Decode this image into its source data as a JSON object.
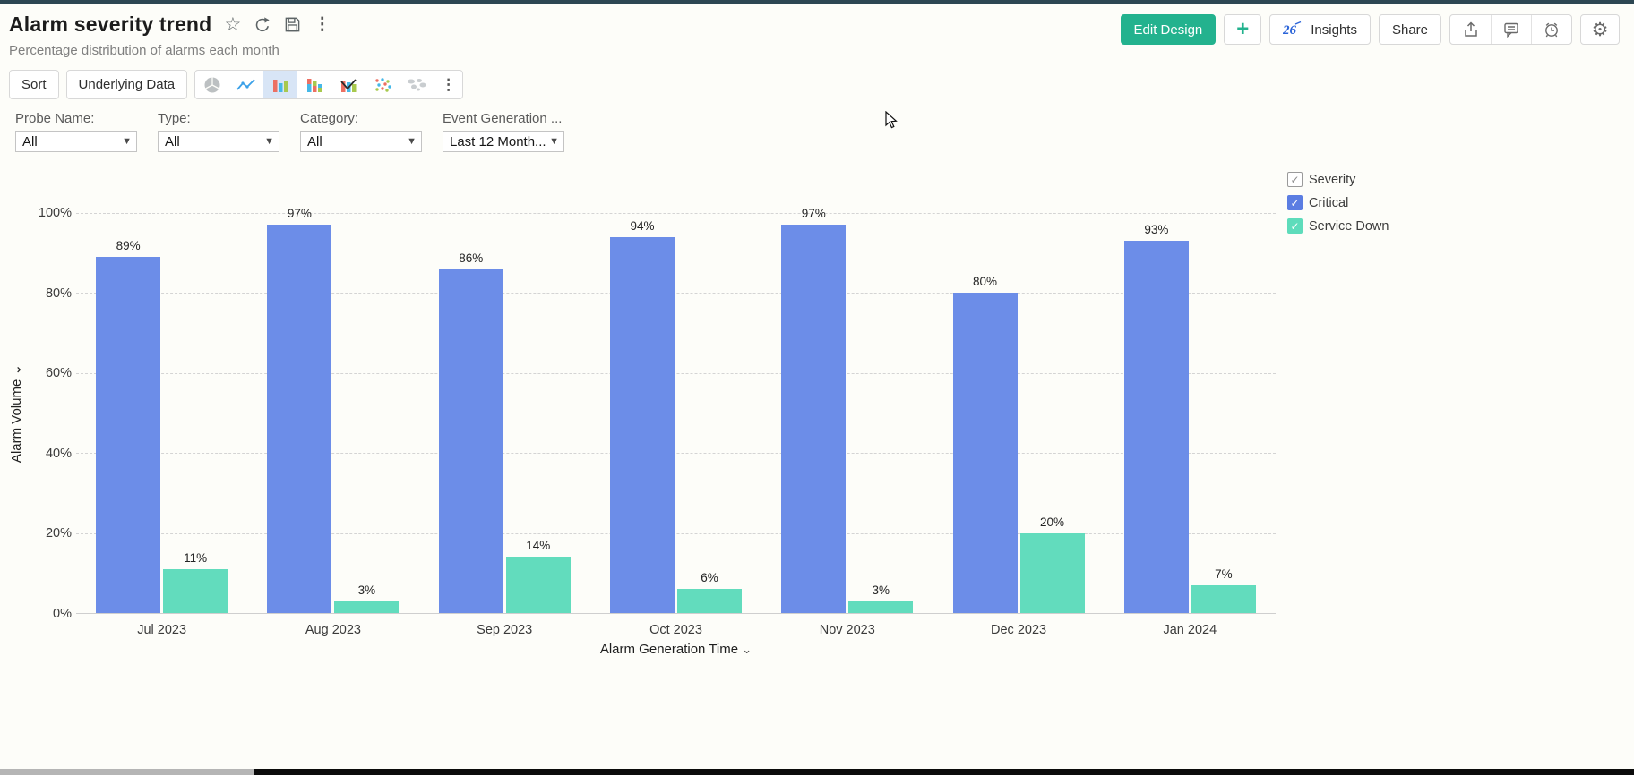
{
  "header": {
    "title": "Alarm severity trend",
    "subtitle": "Percentage distribution of alarms each month",
    "actions": {
      "edit_design": "Edit Design",
      "add": "+",
      "insights": "Insights",
      "share": "Share"
    }
  },
  "toolbar": {
    "sort": "Sort",
    "underlying_data": "Underlying Data",
    "chart_types": [
      "pie",
      "line",
      "bar",
      "stacked-bar",
      "bar-line-combo",
      "scatter",
      "world-map"
    ],
    "selected_chart_type": "bar"
  },
  "filters": [
    {
      "label": "Probe Name:",
      "value": "All"
    },
    {
      "label": "Type:",
      "value": "All"
    },
    {
      "label": "Category:",
      "value": "All"
    },
    {
      "label": "Event Generation ...",
      "value": "Last 12 Month..."
    }
  ],
  "legend": {
    "title": "Severity",
    "items": [
      {
        "label": "Critical",
        "color": "#5b7de2",
        "checked": true
      },
      {
        "label": "Service Down",
        "color": "#5edcbb",
        "checked": true
      }
    ]
  },
  "chart_data": {
    "type": "bar",
    "title": "Alarm severity trend",
    "categories": [
      "Jul 2023",
      "Aug 2023",
      "Sep 2023",
      "Oct 2023",
      "Nov 2023",
      "Dec 2023",
      "Jan 2024"
    ],
    "series": [
      {
        "name": "Critical",
        "color": "#6c8de8",
        "values": [
          89,
          97,
          86,
          94,
          97,
          80,
          93
        ]
      },
      {
        "name": "Service Down",
        "color": "#62dcbd",
        "values": [
          11,
          3,
          14,
          6,
          3,
          20,
          7
        ]
      }
    ],
    "xlabel": "Alarm Generation Time",
    "ylabel": "Alarm Volume",
    "ylim": [
      0,
      100
    ],
    "y_ticks": [
      "0%",
      "20%",
      "40%",
      "60%",
      "80%",
      "100%"
    ],
    "value_suffix": "%",
    "grid": "horizontal-dashed",
    "legend_position": "top-right"
  },
  "colors": {
    "accent_teal": "#23b28e",
    "bar_critical": "#6c8de8",
    "bar_service_down": "#62dcbd",
    "selected_icon_bg": "#d8e5f6",
    "top_strip": "#2d4753"
  }
}
